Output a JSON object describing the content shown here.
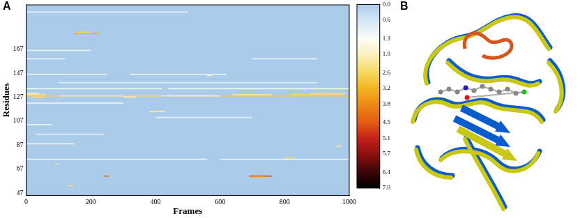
{
  "chart_data": {
    "type": "heatmap",
    "title": "A",
    "x_label": "Frames",
    "y_label": "Residues",
    "xlim": [
      0,
      1000
    ],
    "xticks": [
      0,
      200,
      400,
      600,
      800,
      1000
    ],
    "ylim": [
      45,
      204
    ],
    "yticks": [
      47,
      67,
      87,
      107,
      127,
      147,
      167
    ],
    "grid": false,
    "cells": [
      [
        0,
        420,
        134,
        1.1
      ],
      [
        440,
        1000,
        134,
        1.1
      ],
      [
        0,
        300,
        122,
        1.0
      ],
      [
        0,
        560,
        75,
        1.0
      ],
      [
        600,
        1000,
        75,
        0.9
      ],
      [
        0,
        150,
        88,
        1.0
      ],
      [
        30,
        240,
        96,
        0.9
      ],
      [
        0,
        250,
        146,
        0.9
      ],
      [
        320,
        620,
        146,
        0.9
      ],
      [
        0,
        120,
        159,
        1.0
      ],
      [
        700,
        900,
        159,
        0.9
      ],
      [
        0,
        500,
        198,
        0.9
      ],
      [
        100,
        900,
        139,
        0.8
      ],
      [
        0,
        200,
        166,
        0.9
      ],
      [
        400,
        700,
        110,
        0.9
      ],
      [
        0,
        80,
        104,
        1.0
      ],
      [
        0,
        100,
        128,
        2.8
      ],
      [
        100,
        300,
        128,
        2.2
      ],
      [
        300,
        420,
        128,
        2.6
      ],
      [
        420,
        600,
        128,
        2.0
      ],
      [
        600,
        1000,
        128,
        2.9
      ],
      [
        0,
        60,
        129,
        2.3
      ],
      [
        640,
        760,
        129,
        2.2
      ],
      [
        820,
        980,
        129,
        2.6
      ],
      [
        0,
        40,
        130,
        1.9
      ],
      [
        880,
        990,
        130,
        2.4
      ],
      [
        20,
        60,
        127,
        2.5
      ],
      [
        300,
        340,
        127,
        2.0
      ],
      [
        150,
        225,
        180,
        3.3
      ],
      [
        160,
        200,
        181,
        2.6
      ],
      [
        240,
        255,
        61,
        4.2
      ],
      [
        690,
        760,
        61,
        4.4
      ],
      [
        700,
        740,
        60,
        3.0
      ],
      [
        800,
        830,
        76,
        2.6
      ],
      [
        380,
        430,
        115,
        2.1
      ],
      [
        130,
        145,
        53,
        2.4
      ],
      [
        90,
        100,
        71,
        2.3
      ],
      [
        560,
        575,
        145,
        2.0
      ],
      [
        960,
        975,
        86,
        2.2
      ]
    ],
    "colorbar": {
      "range": [
        0,
        7
      ],
      "ticks": [
        {
          "value": 0,
          "label": "0.0"
        },
        0.6,
        1.3,
        1.9,
        2.6,
        3.2,
        3.8,
        4.5,
        5.1,
        5.7,
        6.4,
        {
          "value": 7,
          "label": "7.0"
        }
      ],
      "colors": [
        "#abcbea",
        "#d3e6f6",
        "#fbfdf8",
        "#fbf0c0",
        "#f6d75e",
        "#f2b620",
        "#ee8a16",
        "#e35c12",
        "#c4221a",
        "#8c1010",
        "#3a0606",
        "#000000"
      ]
    }
  },
  "image": {
    "label": "B"
  }
}
